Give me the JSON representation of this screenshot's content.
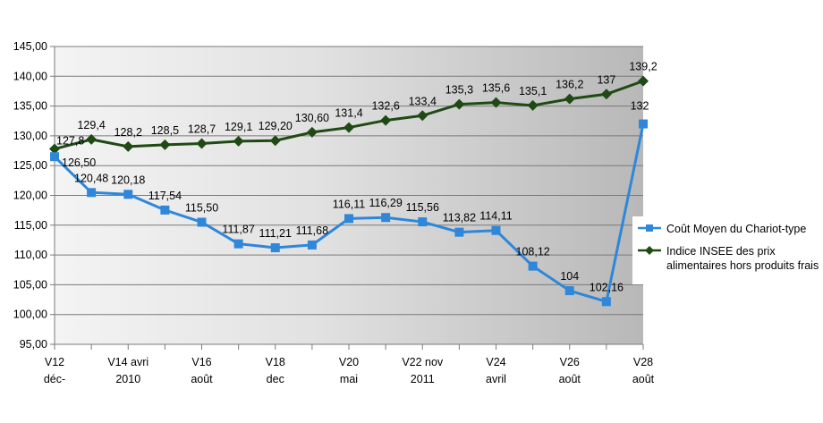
{
  "chart_data": {
    "type": "line",
    "x_tick_labels": [
      [
        "V12",
        "déc-"
      ],
      [
        "",
        ""
      ],
      [
        "V14 avri",
        "2010"
      ],
      [
        "",
        ""
      ],
      [
        "V16",
        "août"
      ],
      [
        "",
        ""
      ],
      [
        "V18",
        "dec"
      ],
      [
        "",
        ""
      ],
      [
        "V20",
        "mai"
      ],
      [
        "",
        ""
      ],
      [
        "V22 nov",
        "2011"
      ],
      [
        "",
        ""
      ],
      [
        "V24",
        "avril"
      ],
      [
        "",
        ""
      ],
      [
        "V26",
        "août"
      ],
      [
        "",
        ""
      ],
      [
        "V28",
        "août"
      ]
    ],
    "y_tick_labels": [
      "95,00",
      "100,00",
      "105,00",
      "110,00",
      "115,00",
      "120,00",
      "125,00",
      "130,00",
      "135,00",
      "140,00",
      "145,00"
    ],
    "ylim": [
      95,
      145
    ],
    "grid": true,
    "legend_position": "right",
    "series": [
      {
        "name": "Coût Moyen du Chariot-type",
        "color": "#2e87d9",
        "marker": "square",
        "values": [
          126.5,
          120.48,
          120.18,
          117.54,
          115.5,
          111.87,
          111.21,
          111.68,
          116.11,
          116.29,
          115.56,
          113.82,
          114.11,
          108.12,
          104,
          102.16,
          132
        ],
        "labels": [
          "126,50",
          "120,48",
          "120,18",
          "117,54",
          "115,50",
          "111,87",
          "111,21",
          "111,68",
          "116,11",
          "116,29",
          "115,56",
          "113,82",
          "114,11",
          "108,12",
          "104",
          "102,16",
          "132"
        ]
      },
      {
        "name": "Indice INSEE des prix alimentaires hors produits frais",
        "color": "#1f4a14",
        "marker": "diamond",
        "values": [
          127.8,
          129.4,
          128.2,
          128.5,
          128.7,
          129.1,
          129.2,
          130.6,
          131.4,
          132.6,
          133.4,
          135.3,
          135.6,
          135.1,
          136.2,
          137,
          139.2
        ],
        "labels": [
          "127,8",
          "129,4",
          "128,2",
          "128,5",
          "128,7",
          "129,1",
          "129,20",
          "130,60",
          "131,4",
          "132,6",
          "133,4",
          "135,3",
          "135,6",
          "135,1",
          "136,2",
          "137",
          "139,2"
        ]
      }
    ]
  },
  "legend": {
    "series_0_label": "Coût Moyen du Chariot-type",
    "series_1_label": "Indice INSEE des prix alimentaires hors produits frais"
  }
}
